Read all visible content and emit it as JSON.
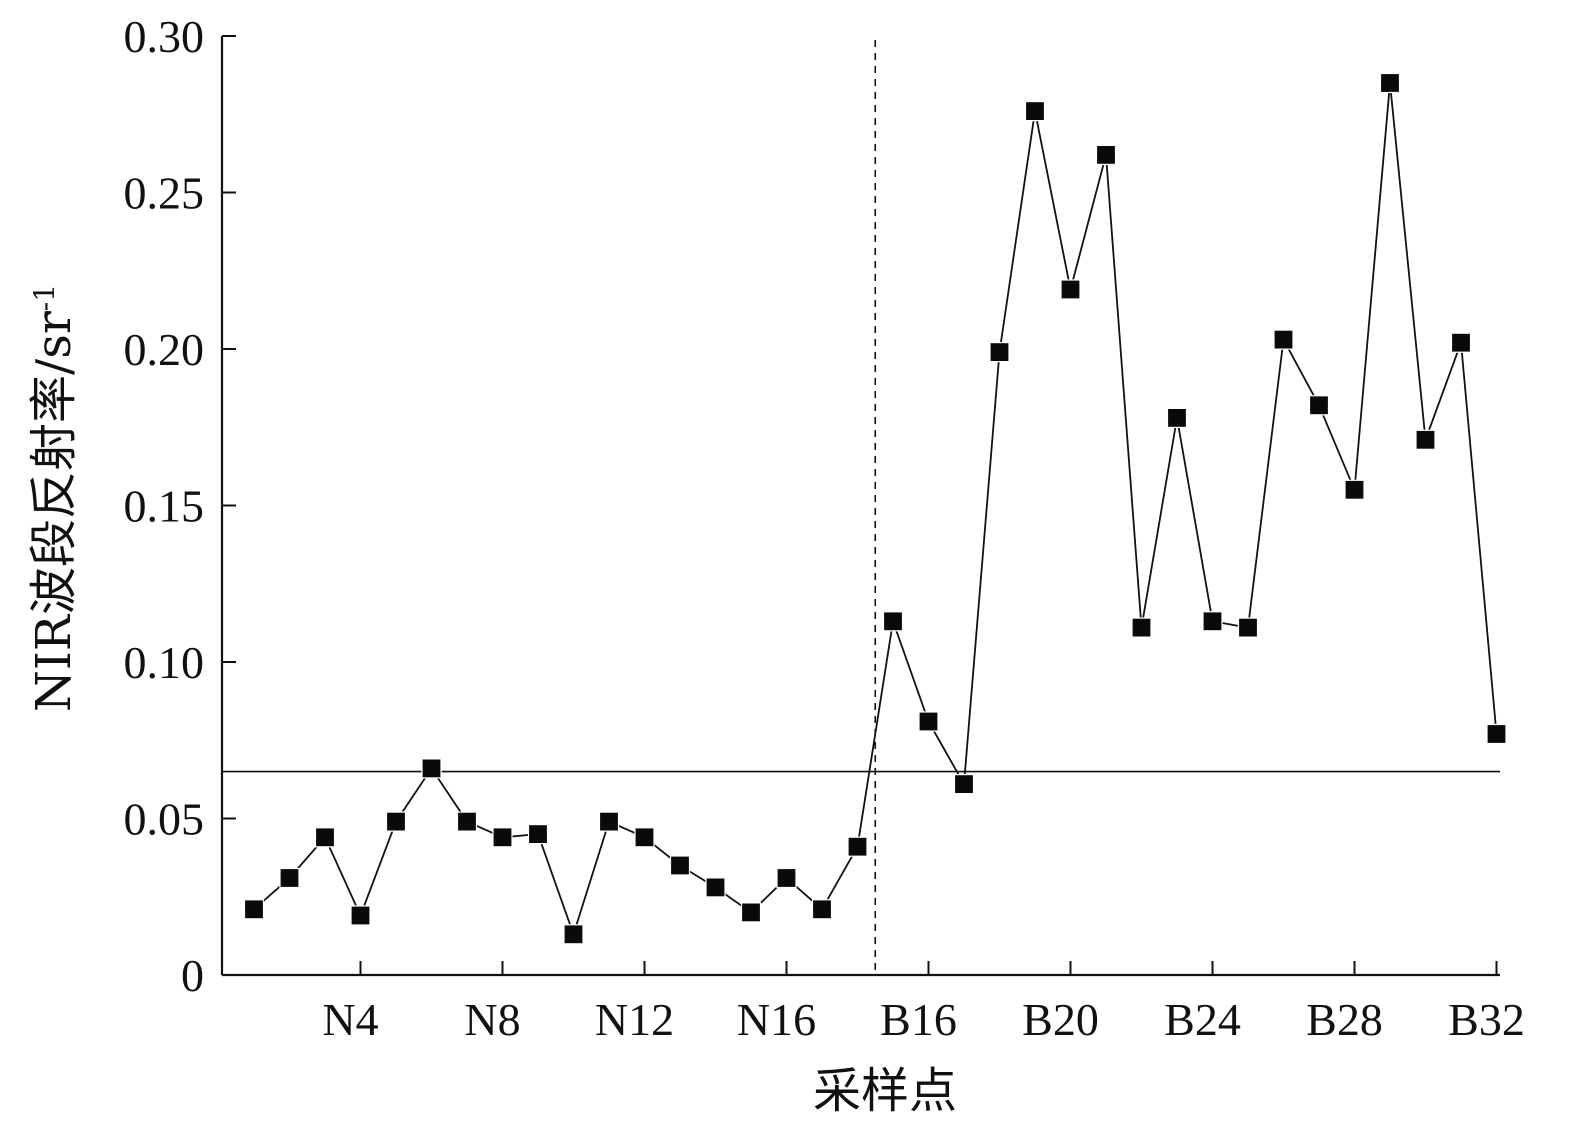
{
  "chart_data": {
    "type": "line",
    "xlabel": "采样点",
    "ylabel_main": "NIR波段反射率",
    "ylabel_unit": "/sr",
    "ylabel_sup": "-1",
    "ylim": [
      0,
      0.3
    ],
    "yticks": [
      0,
      0.05,
      0.1,
      0.15,
      0.2,
      0.25,
      0.3
    ],
    "ytick_labels": [
      "0",
      "0.05",
      "0.10",
      "0.15",
      "0.20",
      "0.25",
      "0.30"
    ],
    "xtick_labels": [
      "N4",
      "N8",
      "N12",
      "N16",
      "B16",
      "B20",
      "B24",
      "B28",
      "B32"
    ],
    "xtick_positions": [
      4,
      8,
      12,
      16,
      20,
      24,
      28,
      32,
      36
    ],
    "x_count": 36,
    "threshold": 0.065,
    "divider_x": 18.5,
    "grid": false,
    "legend": "none",
    "series": [
      {
        "values": [
          0.021,
          0.031,
          0.044,
          0.019,
          0.049,
          0.066,
          0.049,
          0.044,
          0.045,
          0.013,
          0.049,
          0.044,
          0.035,
          0.028,
          0.02,
          0.031,
          0.021,
          0.041,
          0.113,
          0.081,
          0.061,
          0.199,
          0.276,
          0.219,
          0.262,
          0.111,
          0.178,
          0.113,
          0.111,
          0.203,
          0.182,
          0.155,
          0.285,
          0.171,
          0.202,
          0.077
        ]
      }
    ]
  }
}
